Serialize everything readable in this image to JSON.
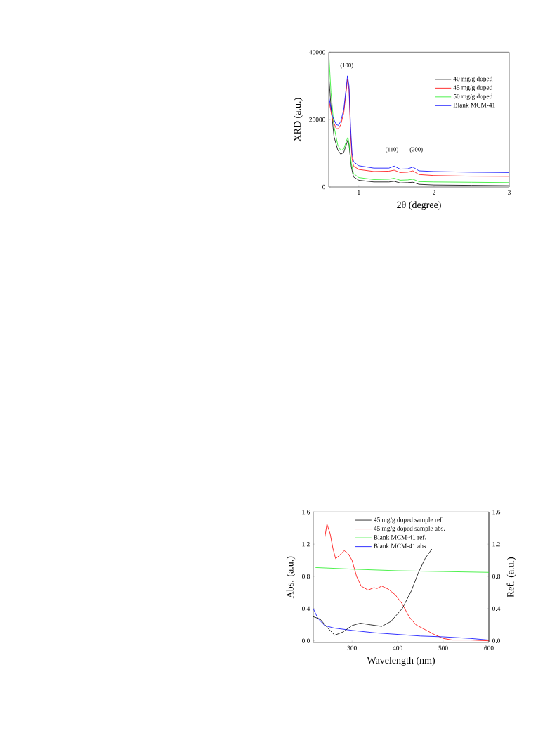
{
  "chart_data": [
    {
      "type": "line",
      "xlabel": "2θ (degree)",
      "ylabel": "XRD (a.u.)",
      "xlim": [
        0.6,
        3
      ],
      "ylim": [
        0,
        40000
      ],
      "xticks": [
        1,
        2,
        3
      ],
      "yticks": [
        0,
        20000,
        40000
      ],
      "legend": "top right",
      "marker": "none",
      "series": [
        {
          "name": "40 mg/g doped",
          "color": "#000000",
          "x": [
            0.6,
            0.63,
            0.67,
            0.72,
            0.76,
            0.8,
            0.84,
            0.855,
            0.87,
            0.9,
            0.93,
            1.0,
            1.2,
            1.4,
            1.47,
            1.55,
            1.65,
            1.72,
            1.8,
            2.0,
            2.5,
            3.0
          ],
          "values": [
            33000,
            24000,
            15000,
            11000,
            9700,
            10300,
            13000,
            14000,
            12500,
            6000,
            3000,
            2000,
            1500,
            1500,
            1700,
            1200,
            1300,
            1400,
            800,
            600,
            500,
            400
          ]
        },
        {
          "name": "45 mg/g doped",
          "color": "#ff0000",
          "x": [
            0.6,
            0.65,
            0.7,
            0.73,
            0.76,
            0.8,
            0.83,
            0.85,
            0.87,
            0.89,
            0.91,
            0.93,
            1.0,
            1.2,
            1.4,
            1.47,
            1.55,
            1.65,
            1.72,
            1.8,
            2.0,
            2.5,
            3.0
          ],
          "values": [
            26000,
            20000,
            17300,
            17300,
            18500,
            22000,
            28000,
            32000,
            29000,
            16000,
            8500,
            6200,
            5200,
            4600,
            4700,
            5000,
            4300,
            4400,
            4800,
            3700,
            3400,
            3200,
            3100
          ]
        },
        {
          "name": "50 mg/g doped",
          "color": "#22ee22",
          "x": [
            0.6,
            0.63,
            0.67,
            0.72,
            0.76,
            0.8,
            0.84,
            0.855,
            0.87,
            0.9,
            0.93,
            1.0,
            1.2,
            1.4,
            1.47,
            1.55,
            1.65,
            1.72,
            1.8,
            2.0,
            2.5,
            3.0
          ],
          "values": [
            40000,
            28000,
            18000,
            12500,
            10800,
            11300,
            14000,
            14700,
            13000,
            7000,
            4000,
            2800,
            2200,
            2300,
            2600,
            2000,
            2100,
            2300,
            1600,
            1500,
            1400,
            1300
          ]
        },
        {
          "name": "Blank MCM-41",
          "color": "#0000ff",
          "x": [
            0.6,
            0.65,
            0.7,
            0.73,
            0.76,
            0.8,
            0.83,
            0.85,
            0.87,
            0.89,
            0.91,
            0.93,
            1.0,
            1.2,
            1.4,
            1.47,
            1.55,
            1.65,
            1.72,
            1.8,
            2.0,
            2.5,
            3.0
          ],
          "values": [
            27000,
            21000,
            18500,
            18300,
            19500,
            23000,
            29000,
            33000,
            30000,
            18000,
            10000,
            7500,
            6300,
            5600,
            5600,
            6200,
            5300,
            5400,
            5900,
            4800,
            4600,
            4400,
            4300
          ]
        }
      ],
      "annotations": [
        "(100)",
        "(110)",
        "(200)"
      ]
    },
    {
      "type": "line",
      "xlabel": "Wavelength (nm)",
      "ylabel": "Abs. (a.u.)",
      "y2label": "Ref. (a.u.)",
      "xlim": [
        215,
        600
      ],
      "ylim": [
        -0.02,
        1.6
      ],
      "y2lim": [
        -0.02,
        1.6
      ],
      "xticks": [
        300,
        400,
        500,
        600
      ],
      "yticks": [
        {
          "value": 0,
          "label": "0.0"
        },
        0.4,
        0.8,
        1.2,
        1.6
      ],
      "y2ticks": [
        {
          "value": 0,
          "label": "0.0"
        },
        0.4,
        0.8,
        1.2,
        1.6
      ],
      "legend": "top",
      "marker": "none",
      "series": [
        {
          "name": "45 mg/g doped sample ref.",
          "color": "#000000",
          "axis": "y2",
          "x": [
            215,
            230,
            245,
            262,
            280,
            300,
            318,
            340,
            365,
            385,
            410,
            430,
            445,
            460,
            475
          ],
          "values": [
            0.3,
            0.27,
            0.17,
            0.07,
            0.11,
            0.19,
            0.22,
            0.2,
            0.18,
            0.24,
            0.4,
            0.62,
            0.84,
            1.02,
            1.14
          ]
        },
        {
          "name": "45 mg/g doped sample abs.",
          "color": "#ff0000",
          "x": [
            240,
            245,
            252,
            258,
            264,
            272,
            283,
            292,
            300,
            310,
            320,
            335,
            348,
            355,
            365,
            380,
            395,
            410,
            425,
            440,
            460,
            480,
            500,
            520,
            560,
            600
          ],
          "values": [
            1.27,
            1.45,
            1.33,
            1.15,
            1.02,
            1.06,
            1.12,
            1.08,
            1.0,
            0.8,
            0.68,
            0.63,
            0.66,
            0.65,
            0.68,
            0.64,
            0.57,
            0.46,
            0.3,
            0.2,
            0.14,
            0.08,
            0.03,
            0.01,
            0.01,
            0.0
          ]
        },
        {
          "name": "Blank MCM-41 ref.",
          "color": "#22ee22",
          "axis": "y2",
          "x": [
            220,
            300,
            400,
            500,
            600
          ],
          "values": [
            0.91,
            0.89,
            0.87,
            0.86,
            0.85
          ]
        },
        {
          "name": "Blank MCM-41 abs.",
          "color": "#0000ff",
          "x": [
            215,
            225,
            240,
            260,
            300,
            350,
            400,
            450,
            500,
            530,
            560,
            600
          ],
          "values": [
            0.4,
            0.28,
            0.19,
            0.16,
            0.13,
            0.1,
            0.08,
            0.06,
            0.05,
            0.04,
            0.03,
            0.01
          ]
        }
      ]
    }
  ]
}
